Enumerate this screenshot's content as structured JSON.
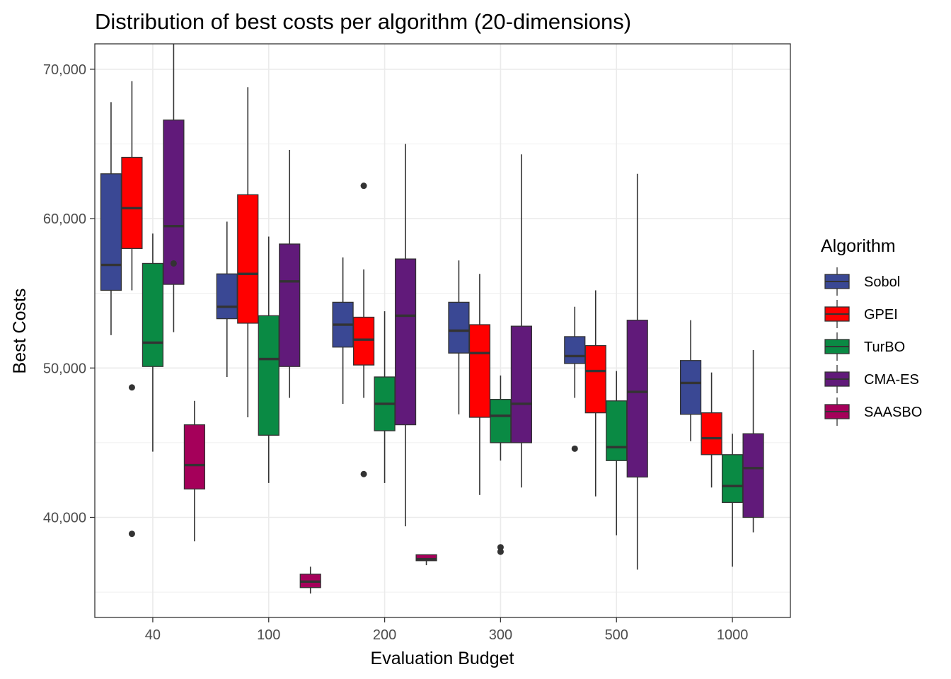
{
  "chart_data": {
    "type": "box",
    "title": "Distribution of best costs per algorithm (20-dimensions)",
    "xlabel": "Evaluation Budget",
    "ylabel": "Best Costs",
    "categories": [
      "40",
      "100",
      "200",
      "300",
      "500",
      "1000"
    ],
    "y_ticks": [
      40000,
      50000,
      60000,
      70000
    ],
    "y_tick_labels": [
      "40,000",
      "50,000",
      "60,000",
      "70,000"
    ],
    "ylim": [
      33300,
      71700
    ],
    "grid": true,
    "legend": {
      "title": "Algorithm",
      "position": "right"
    },
    "series": [
      {
        "name": "Sobol",
        "color": "#3a4894",
        "boxes": [
          {
            "category": "40",
            "whisker_low": 52200,
            "q1": 55200,
            "median": 56900,
            "q3": 63000,
            "whisker_high": 67800,
            "outliers": []
          },
          {
            "category": "100",
            "whisker_low": 49400,
            "q1": 53300,
            "median": 54100,
            "q3": 56300,
            "whisker_high": 59800,
            "outliers": []
          },
          {
            "category": "200",
            "whisker_low": 47600,
            "q1": 51400,
            "median": 52900,
            "q3": 54400,
            "whisker_high": 57400,
            "outliers": []
          },
          {
            "category": "300",
            "whisker_low": 46900,
            "q1": 51000,
            "median": 52500,
            "q3": 54400,
            "whisker_high": 57200,
            "outliers": []
          },
          {
            "category": "500",
            "whisker_low": 48000,
            "q1": 50300,
            "median": 50800,
            "q3": 52100,
            "whisker_high": 54100,
            "outliers": [
              44600
            ]
          },
          {
            "category": "1000",
            "whisker_low": 45100,
            "q1": 46900,
            "median": 49000,
            "q3": 50500,
            "whisker_high": 53200,
            "outliers": []
          }
        ]
      },
      {
        "name": "GPEI",
        "color": "#ff0000",
        "boxes": [
          {
            "category": "40",
            "whisker_low": 55200,
            "q1": 58000,
            "median": 60700,
            "q3": 64100,
            "whisker_high": 69200,
            "outliers": [
              48700,
              38900
            ]
          },
          {
            "category": "100",
            "whisker_low": 46700,
            "q1": 53000,
            "median": 56300,
            "q3": 61600,
            "whisker_high": 68800,
            "outliers": []
          },
          {
            "category": "200",
            "whisker_low": 48000,
            "q1": 50200,
            "median": 51900,
            "q3": 53400,
            "whisker_high": 56600,
            "outliers": [
              62200,
              42900
            ]
          },
          {
            "category": "300",
            "whisker_low": 41500,
            "q1": 46700,
            "median": 51000,
            "q3": 52900,
            "whisker_high": 56300,
            "outliers": []
          },
          {
            "category": "500",
            "whisker_low": 41400,
            "q1": 47000,
            "median": 49800,
            "q3": 51500,
            "whisker_high": 55200,
            "outliers": []
          },
          {
            "category": "1000",
            "whisker_low": 42000,
            "q1": 44200,
            "median": 45300,
            "q3": 47000,
            "whisker_high": 49700,
            "outliers": []
          }
        ]
      },
      {
        "name": "TurBO",
        "color": "#0a8a44",
        "boxes": [
          {
            "category": "40",
            "whisker_low": 44400,
            "q1": 50100,
            "median": 51700,
            "q3": 57000,
            "whisker_high": 59000,
            "outliers": []
          },
          {
            "category": "100",
            "whisker_low": 42300,
            "q1": 45500,
            "median": 50600,
            "q3": 53500,
            "whisker_high": 58800,
            "outliers": []
          },
          {
            "category": "200",
            "whisker_low": 42300,
            "q1": 45800,
            "median": 47600,
            "q3": 49400,
            "whisker_high": 53800,
            "outliers": []
          },
          {
            "category": "300",
            "whisker_low": 43800,
            "q1": 45000,
            "median": 46800,
            "q3": 47900,
            "whisker_high": 49500,
            "outliers": [
              38000,
              37700
            ]
          },
          {
            "category": "500",
            "whisker_low": 38800,
            "q1": 43800,
            "median": 44700,
            "q3": 47800,
            "whisker_high": 49800,
            "outliers": []
          },
          {
            "category": "1000",
            "whisker_low": 36700,
            "q1": 41000,
            "median": 42100,
            "q3": 44200,
            "whisker_high": 45600,
            "outliers": []
          }
        ]
      },
      {
        "name": "CMA-ES",
        "color": "#611a7a",
        "boxes": [
          {
            "category": "40",
            "whisker_low": 52400,
            "q1": 55600,
            "median": 59500,
            "q3": 66600,
            "whisker_high": 71700,
            "outliers": [
              57000
            ]
          },
          {
            "category": "100",
            "whisker_low": 48000,
            "q1": 50100,
            "median": 55800,
            "q3": 58300,
            "whisker_high": 64600,
            "outliers": []
          },
          {
            "category": "200",
            "whisker_low": 39400,
            "q1": 46200,
            "median": 53500,
            "q3": 57300,
            "whisker_high": 65000,
            "outliers": []
          },
          {
            "category": "300",
            "whisker_low": 42000,
            "q1": 45000,
            "median": 47600,
            "q3": 52800,
            "whisker_high": 64300,
            "outliers": []
          },
          {
            "category": "500",
            "whisker_low": 36500,
            "q1": 42700,
            "median": 48400,
            "q3": 53200,
            "whisker_high": 63000,
            "outliers": []
          },
          {
            "category": "1000",
            "whisker_low": 39000,
            "q1": 40000,
            "median": 43300,
            "q3": 45600,
            "whisker_high": 51200,
            "outliers": []
          }
        ]
      },
      {
        "name": "SAASBO",
        "color": "#a5005a",
        "boxes": [
          {
            "category": "40",
            "whisker_low": 38400,
            "q1": 41900,
            "median": 43500,
            "q3": 46200,
            "whisker_high": 47800,
            "outliers": []
          },
          {
            "category": "100",
            "whisker_low": 34900,
            "q1": 35300,
            "median": 35700,
            "q3": 36200,
            "whisker_high": 36700,
            "outliers": []
          },
          {
            "category": "200",
            "whisker_low": 36800,
            "q1": 37100,
            "median": 37200,
            "q3": 37500,
            "whisker_high": 37500,
            "outliers": []
          }
        ]
      }
    ]
  }
}
